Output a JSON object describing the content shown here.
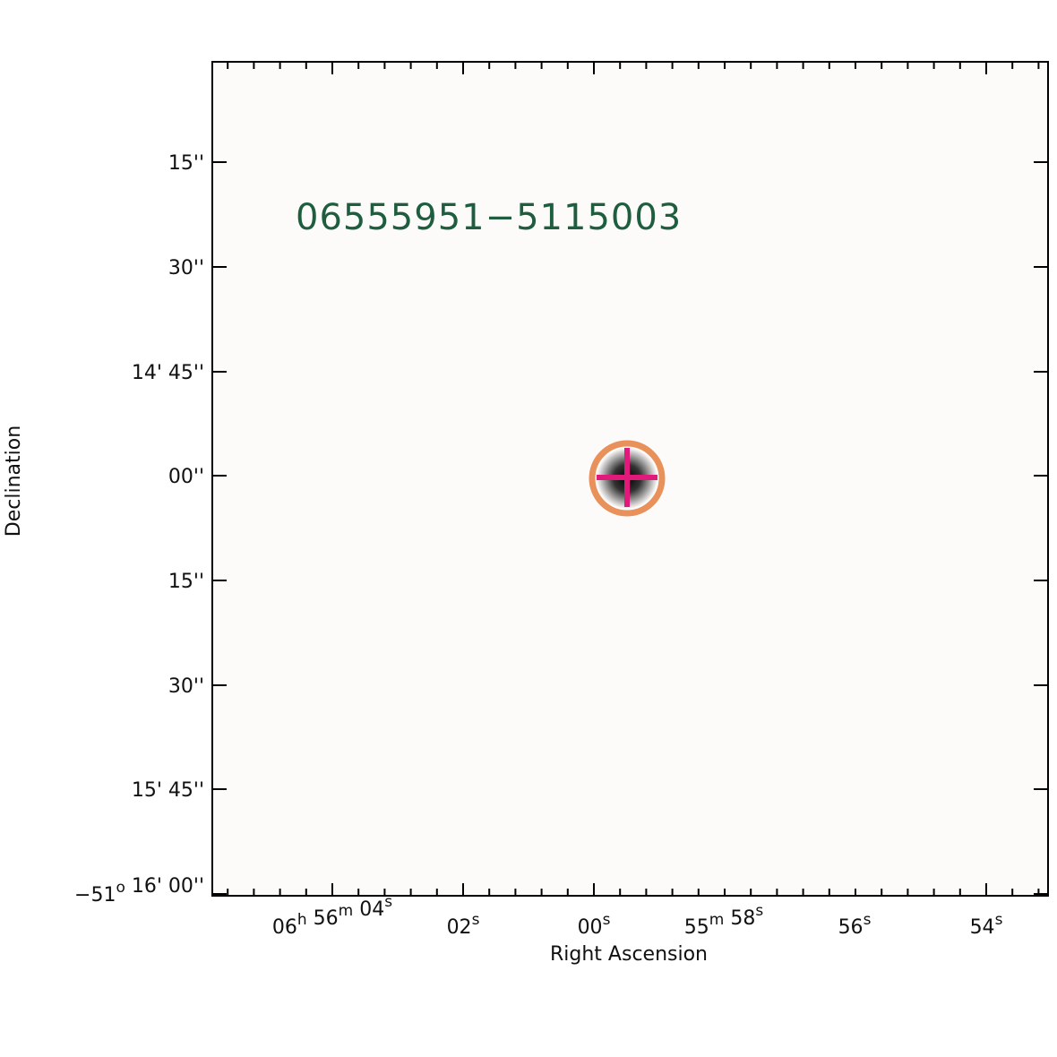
{
  "source_name": "06555951−5115003",
  "x_axis_label": "Right Ascension",
  "y_axis_label": "Declination",
  "x_tick_labels": [
    [
      [
        "06",
        "h"
      ],
      [
        " 56",
        "m"
      ],
      [
        " 04",
        "s"
      ]
    ],
    [
      [
        "02",
        "s"
      ]
    ],
    [
      [
        "00",
        "s"
      ]
    ],
    [
      [
        "55",
        "m"
      ],
      [
        " 58",
        "s"
      ]
    ],
    [
      [
        "56",
        "s"
      ]
    ],
    [
      [
        "54",
        "s"
      ]
    ]
  ],
  "y_tick_labels": [
    [
      [
        "15''",
        ""
      ]
    ],
    [
      [
        "30''",
        ""
      ]
    ],
    [
      [
        "14' 45''",
        ""
      ]
    ],
    [
      [
        "00''",
        ""
      ]
    ],
    [
      [
        "15''",
        ""
      ]
    ],
    [
      [
        "30''",
        ""
      ]
    ],
    [
      [
        "15' 45''",
        ""
      ]
    ],
    [
      [
        "−51",
        "o"
      ],
      [
        " 16' 00''",
        ""
      ]
    ]
  ]
}
